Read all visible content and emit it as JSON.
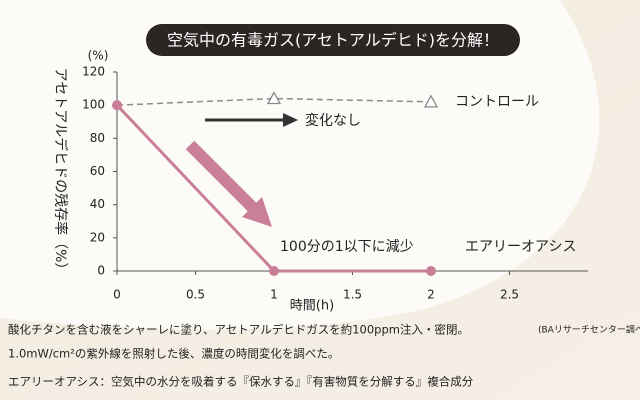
{
  "chart_data": {
    "type": "line",
    "title": "空気中の有毒ガス(アセトアルデヒド)を分解！",
    "y_label": "アセトアルデヒドの残存率（%）",
    "y_unit": "(%)",
    "x_label": "時間(h)",
    "x": [
      0,
      1,
      2
    ],
    "series": [
      {
        "name": "コントロール",
        "color": "#8a8a8a",
        "values": [
          100,
          104,
          102
        ]
      },
      {
        "name": "エアリーオアシス",
        "color": "#c97f97",
        "values": [
          100,
          0,
          0
        ]
      }
    ],
    "xlim": [
      0,
      3
    ],
    "xticks": [
      0,
      0.5,
      1,
      1.5,
      2,
      2.5
    ],
    "ylim": [
      0,
      120
    ],
    "yticks": [
      0,
      20,
      40,
      60,
      80,
      100,
      120
    ],
    "annotations": [
      "変化なし",
      "100分の1以下に減少"
    ],
    "notes": [
      "酸化チタンを含む液をシャーレに塗り、アセトアルデヒドガスを約100ppm注入・密閉。",
      "(BAリサーチセンター調べ)",
      "1.0mW/cm²の紫外線を照射した後、濃度の時間変化を調べた。",
      "エアリーオアシス：空気中の水分を吸着する『保水する』『有害物質を分解する』複合成分"
    ]
  }
}
